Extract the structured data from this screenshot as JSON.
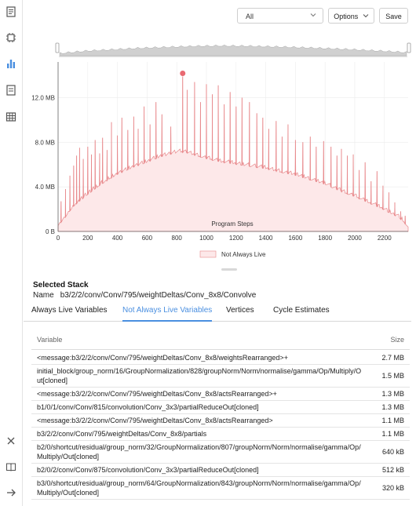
{
  "rail": {
    "top_icons": [
      "document-icon",
      "chip-icon",
      "bar-chart-icon",
      "report-icon",
      "table-icon"
    ],
    "bottom_icons": [
      "close-icon",
      "book-icon",
      "arrow-right-icon"
    ],
    "active_color": "#4a8fe0"
  },
  "toolbar": {
    "filter_value": "All",
    "options_label": "Options",
    "save_label": "Save"
  },
  "chart_data": {
    "type": "area",
    "xlabel": "Program Steps",
    "ylabel": "",
    "x_ticks": [
      0,
      200,
      400,
      600,
      800,
      1000,
      1200,
      1400,
      1600,
      1800,
      2000,
      2200
    ],
    "y_ticks": [
      "0 B",
      "4.0 MB",
      "8.0 MB",
      "12.0 MB"
    ],
    "y_tick_values": [
      0,
      4,
      8,
      12
    ],
    "xlim": [
      0,
      2360
    ],
    "ylim": [
      0,
      15.2
    ],
    "y_unit": "MB",
    "legend": "Not Always Live",
    "legend_placement": "bottom-center",
    "grid": true,
    "line_color": "#e8898c",
    "fill_color": "#fde8e9",
    "highlight_color": "#e96a72",
    "baseline": [
      [
        0,
        0.5
      ],
      [
        40,
        1.1
      ],
      [
        100,
        2.2
      ],
      [
        200,
        3.3
      ],
      [
        300,
        4.3
      ],
      [
        400,
        5.1
      ],
      [
        500,
        5.7
      ],
      [
        600,
        6.2
      ],
      [
        700,
        6.7
      ],
      [
        800,
        7.05
      ],
      [
        850,
        7.1
      ],
      [
        900,
        6.9
      ],
      [
        1000,
        6.5
      ],
      [
        1100,
        6.2
      ],
      [
        1200,
        6.0
      ],
      [
        1300,
        5.8
      ],
      [
        1400,
        5.6
      ],
      [
        1500,
        5.3
      ],
      [
        1600,
        5.0
      ],
      [
        1700,
        4.6
      ],
      [
        1800,
        4.2
      ],
      [
        1900,
        3.6
      ],
      [
        2000,
        3.1
      ],
      [
        2100,
        2.5
      ],
      [
        2200,
        1.9
      ],
      [
        2300,
        1.2
      ],
      [
        2360,
        0.4
      ]
    ],
    "spikes": [
      [
        20,
        2.7
      ],
      [
        50,
        3.8
      ],
      [
        80,
        5.0
      ],
      [
        105,
        5.9
      ],
      [
        125,
        6.8
      ],
      [
        145,
        7.5
      ],
      [
        170,
        6.5
      ],
      [
        200,
        7.6
      ],
      [
        225,
        6.9
      ],
      [
        250,
        8.2
      ],
      [
        280,
        7.0
      ],
      [
        300,
        8.4
      ],
      [
        330,
        7.3
      ],
      [
        360,
        9.8
      ],
      [
        400,
        8.6
      ],
      [
        430,
        10.2
      ],
      [
        470,
        9.1
      ],
      [
        510,
        10.3
      ],
      [
        540,
        9.2
      ],
      [
        580,
        11.2
      ],
      [
        620,
        9.6
      ],
      [
        660,
        11.6
      ],
      [
        700,
        10.5
      ],
      [
        760,
        9.4
      ],
      [
        840,
        13.9
      ],
      [
        870,
        12.7
      ],
      [
        920,
        13.4
      ],
      [
        960,
        11.6
      ],
      [
        1000,
        13.2
      ],
      [
        1040,
        12.3
      ],
      [
        1080,
        13.1
      ],
      [
        1120,
        11.4
      ],
      [
        1160,
        12.5
      ],
      [
        1200,
        11.2
      ],
      [
        1240,
        12.0
      ],
      [
        1290,
        11.6
      ],
      [
        1340,
        10.6
      ],
      [
        1380,
        10.2
      ],
      [
        1420,
        9.2
      ],
      [
        1470,
        9.9
      ],
      [
        1510,
        8.5
      ],
      [
        1550,
        9.6
      ],
      [
        1600,
        8.2
      ],
      [
        1650,
        8.0
      ],
      [
        1700,
        8.5
      ],
      [
        1740,
        7.6
      ],
      [
        1790,
        8.1
      ],
      [
        1840,
        7.6
      ],
      [
        1880,
        6.8
      ],
      [
        1910,
        7.4
      ],
      [
        1950,
        6.8
      ],
      [
        1990,
        6.9
      ],
      [
        2030,
        5.5
      ],
      [
        2070,
        6.2
      ],
      [
        2110,
        4.5
      ],
      [
        2150,
        5.4
      ],
      [
        2190,
        4.1
      ],
      [
        2230,
        3.5
      ],
      [
        2270,
        2.6
      ],
      [
        2310,
        1.8
      ],
      [
        2340,
        1.4
      ]
    ],
    "highlight_point": [
      840,
      13.9
    ],
    "overview_profile": [
      0.2,
      0.45,
      0.6,
      0.75,
      0.85,
      0.95,
      1.0,
      0.97,
      0.9,
      0.82,
      0.72,
      0.6,
      0.45,
      0.3
    ]
  },
  "selected_stack": {
    "title": "Selected Stack",
    "name_label": "Name",
    "name_value": "b3/2/2/conv/Conv/795/weightDeltas/Conv_8x8/Convolve"
  },
  "tabs": [
    {
      "label": "Always Live Variables",
      "active": false
    },
    {
      "label": "Not Always Live Variables",
      "active": true
    },
    {
      "label": "Vertices",
      "active": false
    },
    {
      "label": "Cycle Estimates",
      "active": false
    }
  ],
  "table": {
    "col_variable": "Variable",
    "col_size": "Size",
    "rows": [
      {
        "variable": "<message:b3/2/2/conv/Conv/795/weightDeltas/Conv_8x8/weightsRearranged>+",
        "size": "2.7 MB"
      },
      {
        "variable": "initial_block/group_norm/16/GroupNormalization/828/groupNorm/Norm/normalise/gamma/Op/Multiply/Out[cloned]",
        "size": "1.5 MB"
      },
      {
        "variable": "<message:b3/2/2/conv/Conv/795/weightDeltas/Conv_8x8/actsRearranged>+",
        "size": "1.3 MB"
      },
      {
        "variable": "b1/0/1/conv/Conv/815/convolution/Conv_3x3/partialReduceOut[cloned]",
        "size": "1.3 MB"
      },
      {
        "variable": "<message:b3/2/2/conv/Conv/795/weightDeltas/Conv_8x8/actsRearranged>",
        "size": "1.1 MB"
      },
      {
        "variable": "b3/2/2/conv/Conv/795/weightDeltas/Conv_8x8/partials",
        "size": "1.1 MB"
      },
      {
        "variable": "b2/0/shortcut/residual/group_norm/32/GroupNormalization/807/groupNorm/Norm/normalise/gamma/Op/Multiply/Out[cloned]",
        "size": "640 kB"
      },
      {
        "variable": "b2/0/2/conv/Conv/875/convolution/Conv_3x3/partialReduceOut[cloned]",
        "size": "512 kB"
      },
      {
        "variable": "b3/0/shortcut/residual/group_norm/64/GroupNormalization/843/groupNorm/Norm/normalise/gamma/Op/Multiply/Out[cloned]",
        "size": "320 kB"
      }
    ]
  }
}
